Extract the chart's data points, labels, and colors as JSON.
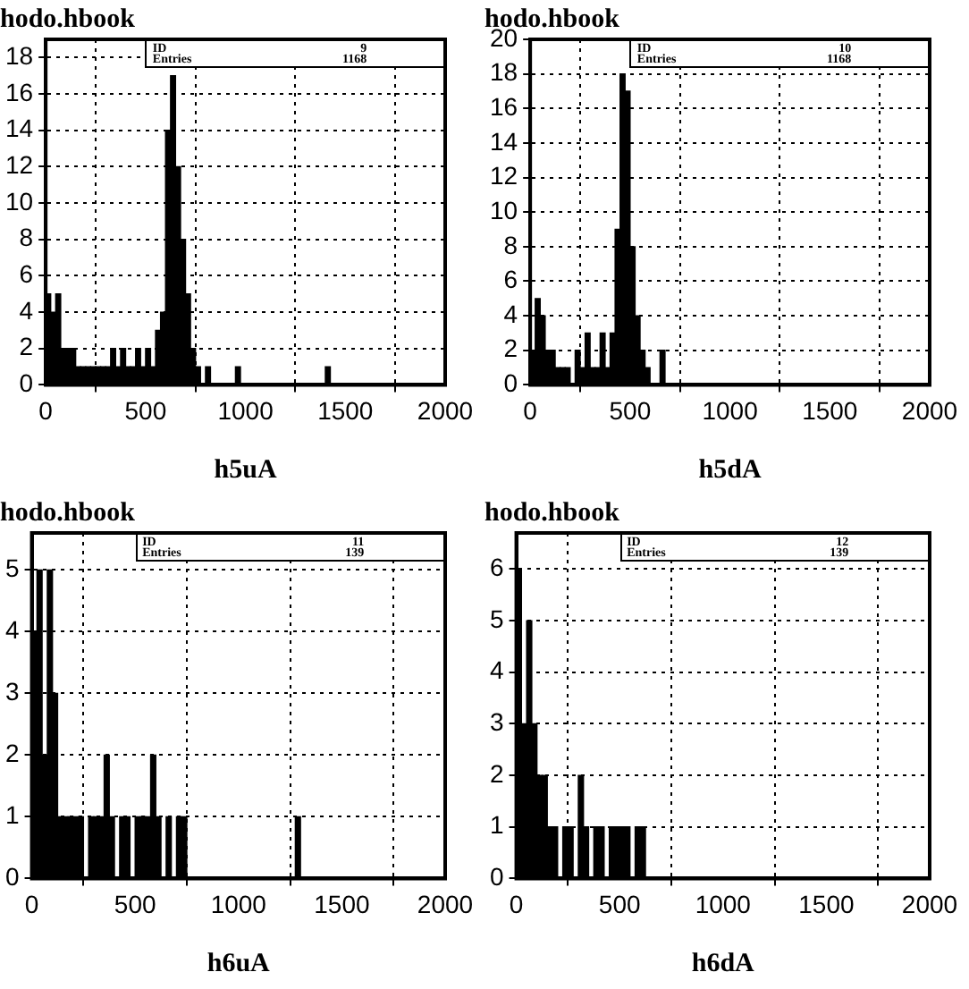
{
  "chart_data": [
    {
      "type": "histogram",
      "title": "hodo.hbook",
      "xlabel": "h5uA",
      "annotations": [
        "ID",
        "9",
        "Entries",
        "1168"
      ],
      "color": "#000000",
      "bins": [
        0,
        25,
        50,
        75,
        100,
        125,
        150,
        175,
        200,
        225,
        250,
        275,
        300,
        325,
        350,
        375,
        400,
        425,
        450,
        475,
        500,
        525,
        550,
        575,
        600,
        625,
        650,
        675,
        700,
        725,
        750,
        775,
        800,
        825,
        850,
        875,
        900,
        925,
        950,
        975,
        1000,
        1025,
        1050,
        1075,
        1100,
        1125,
        1150,
        1175,
        1200,
        1225,
        1250,
        1275,
        1300,
        1325,
        1350,
        1375,
        1400,
        1425
      ],
      "values": [
        5,
        4,
        5,
        2,
        2,
        2,
        1,
        1,
        1,
        1,
        1,
        1,
        1,
        2,
        1,
        2,
        1,
        1,
        2,
        1,
        2,
        1,
        3,
        4,
        14,
        17,
        12,
        8,
        5,
        2,
        1,
        0,
        1,
        0,
        0,
        0,
        0,
        0,
        1,
        0,
        0,
        0,
        0,
        0,
        0,
        0,
        0,
        0,
        0,
        0,
        0,
        0,
        0,
        0,
        0,
        0,
        1
      ],
      "xlim": [
        0,
        2000
      ],
      "xticks": [
        0,
        500,
        1000,
        1500,
        2000
      ],
      "ylim": [
        0,
        19
      ],
      "yticks": [
        0,
        2,
        4,
        6,
        8,
        10,
        12,
        14,
        16,
        18
      ],
      "grid": true
    },
    {
      "type": "histogram",
      "title": "hodo.hbook",
      "xlabel": "h5dA",
      "annotations": [
        "ID",
        "10",
        "Entries",
        "1168"
      ],
      "color": "#000000",
      "bins": [
        0,
        25,
        50,
        75,
        100,
        125,
        150,
        175,
        200,
        225,
        250,
        275,
        300,
        325,
        350,
        375,
        400,
        425,
        450,
        475,
        500,
        525,
        550,
        575,
        600,
        625,
        650,
        675,
        700
      ],
      "values": [
        2,
        5,
        4,
        2,
        2,
        1,
        1,
        1,
        0,
        2,
        1,
        3,
        1,
        1,
        3,
        1,
        3,
        9,
        18,
        17,
        8,
        4,
        2,
        1,
        0,
        0,
        2,
        0
      ],
      "xlim": [
        0,
        2000
      ],
      "xticks": [
        0,
        500,
        1000,
        1500,
        2000
      ],
      "ylim": [
        0,
        20
      ],
      "yticks": [
        0,
        2,
        4,
        6,
        8,
        10,
        12,
        14,
        16,
        18,
        20
      ],
      "grid": true
    },
    {
      "type": "histogram",
      "title": "hodo.hbook",
      "xlabel": "h6uA",
      "annotations": [
        "ID",
        "11",
        "Entries",
        "139"
      ],
      "color": "#000000",
      "bins": [
        0,
        25,
        50,
        75,
        100,
        125,
        150,
        175,
        200,
        225,
        250,
        275,
        300,
        325,
        350,
        375,
        400,
        425,
        450,
        475,
        500,
        525,
        550,
        575,
        600,
        625,
        650,
        675,
        700,
        725,
        750,
        775,
        800,
        825,
        850,
        875,
        900,
        925,
        950,
        975,
        1000,
        1025,
        1050,
        1075,
        1100,
        1125,
        1150,
        1175,
        1200,
        1225,
        1250,
        1275,
        1300
      ],
      "values": [
        4,
        5,
        2,
        5,
        3,
        1,
        1,
        1,
        1,
        1,
        0,
        1,
        1,
        1,
        2,
        1,
        0,
        1,
        1,
        0,
        1,
        1,
        1,
        2,
        1,
        0,
        1,
        0,
        1,
        1,
        0,
        0,
        0,
        0,
        0,
        0,
        0,
        0,
        0,
        0,
        0,
        0,
        0,
        0,
        0,
        0,
        0,
        0,
        0,
        0,
        0,
        1
      ],
      "xlim": [
        0,
        2000
      ],
      "xticks": [
        0,
        500,
        1000,
        1500,
        2000
      ],
      "ylim": [
        0,
        5.6
      ],
      "yticks": [
        0,
        1,
        2,
        3,
        4,
        5
      ],
      "grid": true
    },
    {
      "type": "histogram",
      "title": "hodo.hbook",
      "xlabel": "h6dA",
      "annotations": [
        "ID",
        "12",
        "Entries",
        "139"
      ],
      "color": "#000000",
      "bins": [
        0,
        25,
        50,
        75,
        100,
        125,
        150,
        175,
        200,
        225,
        250,
        275,
        300,
        325,
        350,
        375,
        400,
        425,
        450,
        475,
        500,
        525,
        550,
        575,
        600,
        625,
        650
      ],
      "values": [
        6,
        3,
        5,
        3,
        2,
        2,
        1,
        1,
        0,
        1,
        1,
        0,
        2,
        1,
        0,
        1,
        1,
        0,
        1,
        1,
        1,
        1,
        0,
        1,
        1,
        0
      ],
      "xlim": [
        0,
        2000
      ],
      "xticks": [
        0,
        500,
        1000,
        1500,
        2000
      ],
      "ylim": [
        0,
        6.7
      ],
      "yticks": [
        0,
        1,
        2,
        3,
        4,
        5,
        6
      ],
      "grid": true
    }
  ]
}
